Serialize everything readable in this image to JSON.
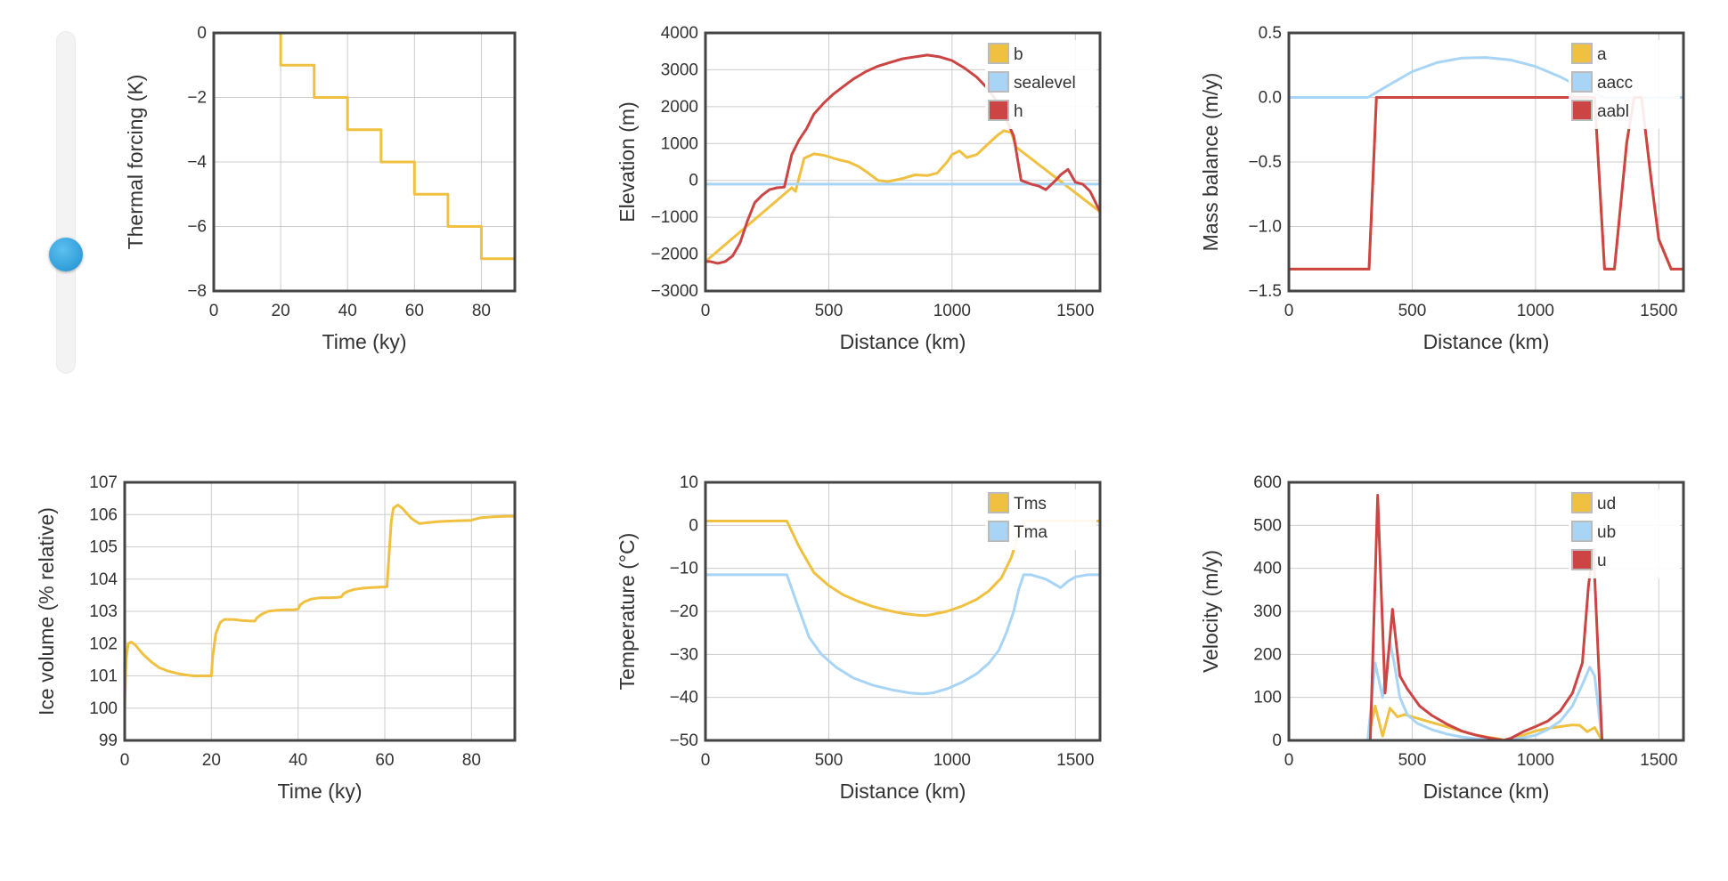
{
  "slider": {
    "name": "thermal-forcing-slider",
    "value_fraction": 0.375
  },
  "chart_data": [
    {
      "id": "thermal",
      "type": "line",
      "xlabel": "Time (ky)",
      "ylabel": "Thermal forcing (K)",
      "xlim": [
        0,
        90
      ],
      "ylim": [
        -8,
        0
      ],
      "xticks": [
        0,
        20,
        40,
        60,
        80
      ],
      "yticks": [
        -8,
        -6,
        -4,
        -2,
        0
      ],
      "grid": true,
      "legend": "none",
      "series": [
        {
          "color": "#f0c040",
          "x": [
            0,
            20,
            20,
            30,
            30,
            40,
            40,
            50,
            50,
            60,
            60,
            70,
            70,
            80,
            80,
            90
          ],
          "y": [
            0,
            0,
            -1,
            -1,
            -2,
            -2,
            -3,
            -3,
            -4,
            -4,
            -5,
            -5,
            -6,
            -6,
            -7,
            -7
          ]
        }
      ]
    },
    {
      "id": "elevation",
      "type": "line",
      "xlabel": "Distance (km)",
      "ylabel": "Elevation (m)",
      "xlim": [
        0,
        1600
      ],
      "ylim": [
        -3000,
        4000
      ],
      "xticks": [
        0,
        500,
        1000,
        1500
      ],
      "yticks": [
        -3000,
        -2000,
        -1000,
        0,
        1000,
        2000,
        3000,
        4000
      ],
      "grid": true,
      "legend": "top-right",
      "series": [
        {
          "name": "b",
          "color": "#f0c040",
          "x": [
            0,
            350,
            365,
            400,
            440,
            480,
            540,
            580,
            620,
            660,
            700,
            740,
            800,
            850,
            900,
            940,
            980,
            1000,
            1030,
            1060,
            1100,
            1140,
            1180,
            1210,
            1240,
            1260,
            1600
          ],
          "y": [
            -2200,
            -200,
            -300,
            600,
            720,
            680,
            560,
            500,
            380,
            200,
            0,
            -30,
            50,
            150,
            130,
            200,
            500,
            700,
            800,
            620,
            700,
            950,
            1200,
            1350,
            1300,
            900,
            -850
          ]
        },
        {
          "name": "sealevel",
          "color": "#a8d4f5",
          "x": [
            0,
            1600
          ],
          "y": [
            -100,
            -100
          ]
        },
        {
          "name": "h",
          "color": "#cc4444",
          "x": [
            0,
            20,
            50,
            80,
            110,
            140,
            170,
            200,
            230,
            260,
            290,
            320,
            350,
            380,
            410,
            440,
            480,
            520,
            560,
            600,
            650,
            700,
            750,
            800,
            850,
            900,
            950,
            1000,
            1050,
            1100,
            1150,
            1200,
            1250,
            1280,
            1320,
            1350,
            1380,
            1420,
            1440,
            1470,
            1500,
            1530,
            1560,
            1600
          ],
          "y": [
            -2200,
            -2200,
            -2250,
            -2200,
            -2050,
            -1700,
            -1100,
            -600,
            -400,
            -250,
            -200,
            -180,
            700,
            1100,
            1400,
            1800,
            2100,
            2350,
            2550,
            2750,
            2950,
            3100,
            3200,
            3300,
            3350,
            3400,
            3350,
            3250,
            3050,
            2800,
            2450,
            1950,
            1200,
            0,
            -100,
            -150,
            -250,
            0,
            150,
            300,
            -50,
            -100,
            -300,
            -850
          ]
        }
      ]
    },
    {
      "id": "massbalance",
      "type": "line",
      "xlabel": "Distance (km)",
      "ylabel": "Mass balance (m/y)",
      "xlim": [
        0,
        1600
      ],
      "ylim": [
        -1.5,
        0.5
      ],
      "xticks": [
        0,
        500,
        1000,
        1500
      ],
      "yticks": [
        -1.5,
        -1.0,
        -0.5,
        0.0,
        0.5
      ],
      "yfixed": 1,
      "grid": true,
      "legend": "top-right",
      "series": [
        {
          "name": "a",
          "color": "#f0c040",
          "x": [
            0,
            325,
            355,
            1240,
            1280,
            1320,
            1370,
            1400,
            1430,
            1470,
            1500,
            1550,
            1600
          ],
          "y": [
            -1.33,
            -1.33,
            0.0,
            0.0,
            -1.33,
            -1.33,
            -0.35,
            0.0,
            0.0,
            -0.65,
            -1.1,
            -1.33,
            -1.33
          ]
        },
        {
          "name": "aacc",
          "color": "#a8d4f5",
          "x": [
            0,
            320,
            400,
            500,
            600,
            700,
            800,
            900,
            1000,
            1100,
            1200,
            1280,
            1600
          ],
          "y": [
            0,
            0,
            0.09,
            0.2,
            0.27,
            0.305,
            0.31,
            0.29,
            0.24,
            0.16,
            0.06,
            0.0,
            0.0
          ]
        },
        {
          "name": "aabl",
          "color": "#cc4444",
          "x": [
            0,
            325,
            355,
            1240,
            1280,
            1320,
            1370,
            1400,
            1430,
            1470,
            1500,
            1550,
            1600
          ],
          "y": [
            -1.33,
            -1.33,
            0.0,
            0.0,
            -1.33,
            -1.33,
            -0.35,
            0.0,
            0.0,
            -0.65,
            -1.1,
            -1.33,
            -1.33
          ]
        }
      ]
    },
    {
      "id": "icevolume",
      "type": "line",
      "xlabel": "Time (ky)",
      "ylabel": "Ice volume (% relative)",
      "xlim": [
        0,
        90
      ],
      "ylim": [
        99,
        107
      ],
      "xticks": [
        0,
        20,
        40,
        60,
        80
      ],
      "yticks": [
        99,
        100,
        101,
        102,
        103,
        104,
        105,
        106,
        107
      ],
      "grid": true,
      "legend": "none",
      "series": [
        {
          "color": "#f0c040",
          "x": [
            0,
            0.3,
            0.8,
            1.5,
            2.5,
            4,
            6,
            8,
            10,
            12,
            14,
            16,
            18,
            20,
            20.3,
            21,
            22,
            23,
            25,
            27,
            29,
            30,
            30.5,
            31.5,
            33,
            35,
            37,
            39,
            40,
            40.5,
            41.5,
            43,
            45,
            47,
            49,
            50,
            50.5,
            51.5,
            53,
            55,
            57,
            59,
            60.5,
            61,
            61.5,
            62,
            63,
            64,
            65,
            66,
            67,
            68,
            70,
            72,
            75,
            80,
            80.5,
            82,
            85,
            88,
            90
          ],
          "y": [
            100.05,
            101.5,
            102.0,
            102.05,
            101.95,
            101.7,
            101.45,
            101.25,
            101.15,
            101.08,
            101.03,
            101.0,
            101.0,
            101.0,
            101.6,
            102.3,
            102.65,
            102.75,
            102.75,
            102.72,
            102.7,
            102.7,
            102.8,
            102.9,
            103.0,
            103.03,
            103.05,
            103.05,
            103.07,
            103.2,
            103.3,
            103.38,
            103.42,
            103.42,
            103.43,
            103.45,
            103.55,
            103.62,
            103.68,
            103.72,
            103.74,
            103.75,
            103.76,
            104.8,
            105.8,
            106.2,
            106.3,
            106.2,
            106.05,
            105.9,
            105.8,
            105.72,
            105.75,
            105.78,
            105.8,
            105.82,
            105.85,
            105.9,
            105.93,
            105.95,
            105.95
          ]
        }
      ]
    },
    {
      "id": "temperature",
      "type": "line",
      "xlabel": "Distance (km)",
      "ylabel": "Temperature (°C)",
      "xlim": [
        0,
        1600
      ],
      "ylim": [
        -50,
        10
      ],
      "xticks": [
        0,
        500,
        1000,
        1500
      ],
      "yticks": [
        -50,
        -40,
        -30,
        -20,
        -10,
        0,
        10
      ],
      "grid": true,
      "legend": "top-right",
      "series": [
        {
          "name": "Tms",
          "color": "#f0c040",
          "x": [
            0,
            330,
            380,
            440,
            500,
            560,
            620,
            680,
            740,
            800,
            860,
            890,
            920,
            980,
            1040,
            1100,
            1150,
            1200,
            1240,
            1270,
            1290,
            1600
          ],
          "y": [
            1,
            1,
            -5,
            -11,
            -14,
            -16.2,
            -17.7,
            -18.9,
            -19.8,
            -20.5,
            -20.9,
            -21,
            -20.7,
            -20.0,
            -18.8,
            -17.2,
            -15.2,
            -12.2,
            -7.5,
            -2,
            1,
            1
          ]
        },
        {
          "name": "Tma",
          "color": "#a8d4f5",
          "x": [
            0,
            330,
            370,
            420,
            470,
            530,
            600,
            680,
            760,
            830,
            880,
            920,
            980,
            1040,
            1100,
            1150,
            1190,
            1220,
            1250,
            1270,
            1290,
            1320,
            1350,
            1380,
            1410,
            1440,
            1470,
            1500,
            1550,
            1600
          ],
          "y": [
            -11.5,
            -11.5,
            -18,
            -26,
            -30,
            -33,
            -35.5,
            -37.2,
            -38.3,
            -39,
            -39.2,
            -39,
            -38,
            -36.5,
            -34.5,
            -32,
            -29,
            -25,
            -20,
            -15,
            -11.5,
            -11.5,
            -12,
            -12.5,
            -13.5,
            -14.5,
            -13,
            -12,
            -11.5,
            -11.5
          ]
        }
      ]
    },
    {
      "id": "velocity",
      "type": "line",
      "xlabel": "Distance (km)",
      "ylabel": "Velocity (m/y)",
      "xlim": [
        0,
        1600
      ],
      "ylim": [
        0,
        600
      ],
      "xticks": [
        0,
        500,
        1000,
        1500
      ],
      "yticks": [
        0,
        100,
        200,
        300,
        400,
        500,
        600
      ],
      "grid": true,
      "legend": "top-right",
      "series": [
        {
          "name": "ud",
          "color": "#f0c040",
          "x": [
            0,
            320,
            350,
            380,
            410,
            440,
            470,
            500,
            560,
            620,
            680,
            740,
            800,
            860,
            880,
            900,
            950,
            1000,
            1050,
            1100,
            1150,
            1180,
            1210,
            1240,
            1270,
            1600
          ],
          "y": [
            0,
            0,
            80,
            10,
            75,
            55,
            60,
            55,
            45,
            35,
            25,
            15,
            8,
            3,
            0,
            3,
            12,
            22,
            28,
            32,
            36,
            35,
            20,
            30,
            0,
            0
          ]
        },
        {
          "name": "ub",
          "color": "#a8d4f5",
          "x": [
            0,
            320,
            350,
            380,
            410,
            430,
            450,
            480,
            520,
            580,
            640,
            700,
            760,
            820,
            870,
            900,
            950,
            1000,
            1050,
            1100,
            1150,
            1190,
            1220,
            1240,
            1270,
            1600
          ],
          "y": [
            0,
            0,
            180,
            100,
            230,
            170,
            100,
            60,
            40,
            25,
            15,
            8,
            4,
            2,
            0,
            2,
            6,
            12,
            25,
            45,
            80,
            130,
            170,
            150,
            0,
            0
          ]
        },
        {
          "name": "u",
          "color": "#cc4444",
          "x": [
            0,
            330,
            360,
            390,
            420,
            450,
            480,
            530,
            580,
            640,
            700,
            760,
            820,
            870,
            900,
            950,
            1000,
            1050,
            1100,
            1150,
            1190,
            1215,
            1235,
            1270,
            1600
          ],
          "y": [
            0,
            0,
            570,
            110,
            305,
            150,
            120,
            80,
            58,
            38,
            22,
            12,
            5,
            0,
            5,
            20,
            32,
            45,
            68,
            110,
            180,
            360,
            445,
            0,
            0
          ]
        }
      ]
    }
  ]
}
